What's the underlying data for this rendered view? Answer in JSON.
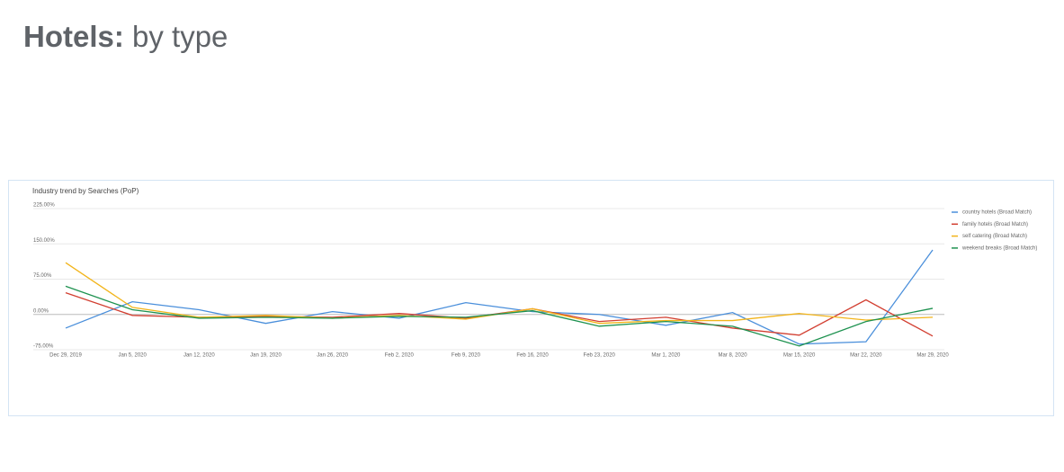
{
  "header": {
    "title_bold": "Hotels:",
    "title_rest": "by type"
  },
  "chart_data": {
    "type": "line",
    "title": "Industry trend by Searches (PoP)",
    "categories": [
      "Dec 29, 2019",
      "Jan 5, 2020",
      "Jan 12, 2020",
      "Jan 19, 2020",
      "Jan 26, 2020",
      "Feb 2, 2020",
      "Feb 9, 2020",
      "Feb 16, 2020",
      "Feb 23, 2020",
      "Mar 1, 2020",
      "Mar 8, 2020",
      "Mar 15, 2020",
      "Mar 22, 2020",
      "Mar 29, 2020"
    ],
    "series": [
      {
        "name": "country hotels (Broad Match)",
        "color": "#4a8fdb",
        "values": [
          -29,
          27,
          10,
          -19,
          6,
          -8,
          25,
          6,
          0,
          -23,
          4,
          -63,
          -58,
          137
        ]
      },
      {
        "name": "family hotels (Broad Match)",
        "color": "#d23f31",
        "values": [
          46,
          -2,
          -6,
          -4,
          -6,
          2,
          -8,
          12,
          -15,
          -6,
          -29,
          -44,
          31,
          -46
        ]
      },
      {
        "name": "self catering (Broad Match)",
        "color": "#f2b41a",
        "values": [
          110,
          15,
          -6,
          -2,
          -8,
          -2,
          -10,
          12,
          -19,
          -13,
          -13,
          2,
          -12,
          -6
        ]
      },
      {
        "name": "weekend breaks (Broad Match)",
        "color": "#1e9250",
        "values": [
          60,
          10,
          -8,
          -6,
          -8,
          -4,
          -6,
          8,
          -25,
          -15,
          -25,
          -67,
          -15,
          13
        ]
      }
    ],
    "ylim": [
      -75,
      225
    ],
    "yticks": [
      {
        "value": -75,
        "label": "-75.00%"
      },
      {
        "value": 0,
        "label": "0.00%"
      },
      {
        "value": 75,
        "label": "75.00%"
      },
      {
        "value": 150,
        "label": "150.00%"
      },
      {
        "value": 225,
        "label": "225.00%"
      }
    ],
    "grid": true,
    "legend": "right"
  }
}
